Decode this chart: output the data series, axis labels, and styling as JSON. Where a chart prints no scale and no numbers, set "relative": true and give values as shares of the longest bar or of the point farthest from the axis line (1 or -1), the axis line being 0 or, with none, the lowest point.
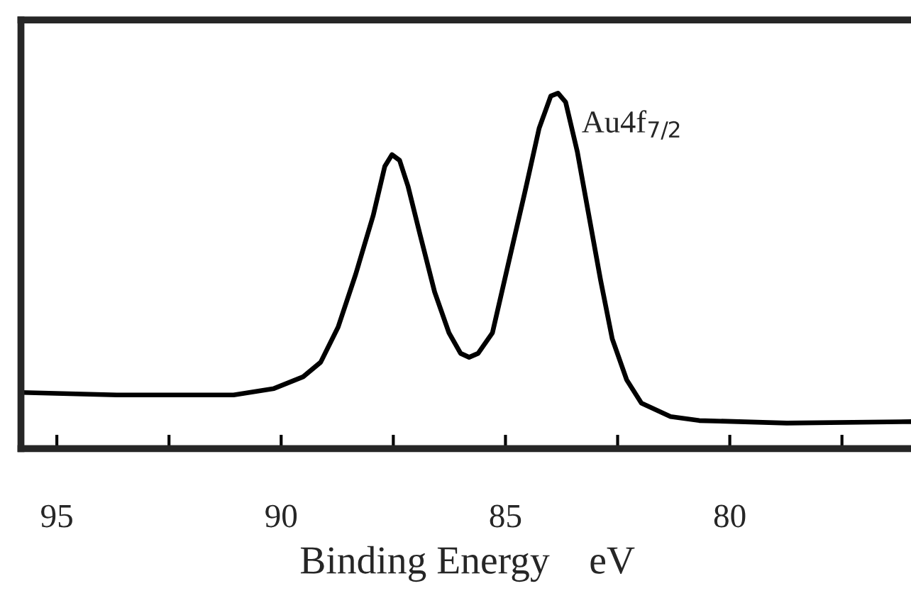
{
  "chart_data": {
    "type": "line",
    "relative": true,
    "xlabel": "Binding Energy    eV",
    "tick_labels": "x",
    "grid": false,
    "legend": false,
    "marker": "none",
    "line_style": "solid",
    "xlim": [
      95.8,
      75.9
    ],
    "xticks": [
      95,
      {
        "value": 92.5,
        "label": null
      },
      90,
      {
        "value": 87.5,
        "label": null
      },
      85,
      {
        "value": 82.5,
        "label": null
      },
      80,
      {
        "value": 77.5,
        "label": null
      }
    ],
    "annotations": [
      {
        "text": "Au4f$_{7/2}$",
        "x": 83.83,
        "y": 1
      }
    ],
    "series": [
      {
        "color": "#000000",
        "x": [
          95.78,
          93.66,
          91.06,
          90.16,
          89.51,
          89.12,
          88.73,
          88.34,
          87.95,
          87.69,
          87.53,
          87.36,
          87.17,
          86.91,
          86.58,
          86.26,
          86.0,
          85.81,
          85.61,
          85.29,
          84.96,
          84.57,
          84.25,
          83.99,
          83.83,
          83.66,
          83.4,
          83.14,
          82.88,
          82.62,
          82.3,
          81.97,
          81.32,
          80.68,
          78.73,
          75.9
        ],
        "values": [
          0.158,
          0.151,
          0.151,
          0.169,
          0.202,
          0.243,
          0.342,
          0.49,
          0.655,
          0.794,
          0.827,
          0.811,
          0.737,
          0.605,
          0.441,
          0.326,
          0.268,
          0.257,
          0.268,
          0.326,
          0.507,
          0.72,
          0.901,
          0.992,
          1,
          0.975,
          0.836,
          0.655,
          0.474,
          0.309,
          0.194,
          0.128,
          0.09,
          0.079,
          0.072,
          0.076
        ]
      }
    ]
  }
}
